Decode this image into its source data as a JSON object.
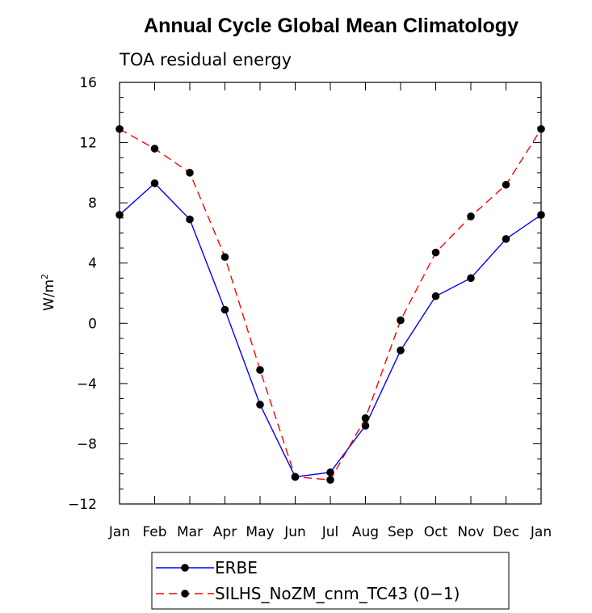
{
  "chart_data": {
    "type": "line",
    "title": "Annual Cycle Global Mean Climatology",
    "subtitle": "TOA residual energy",
    "xlabel": "",
    "ylabel": "W/m",
    "ylabel_sup": "2",
    "categories": [
      "Jan",
      "Feb",
      "Mar",
      "Apr",
      "May",
      "Jun",
      "Jul",
      "Aug",
      "Sep",
      "Oct",
      "Nov",
      "Dec",
      "Jan"
    ],
    "ylim": [
      -12,
      16
    ],
    "yticks": [
      -12,
      -8,
      -4,
      0,
      4,
      8,
      12,
      16
    ],
    "ytick_labels": [
      "−12",
      "−8",
      "−4",
      "0",
      "4",
      "8",
      "12",
      "16"
    ],
    "grid": false,
    "legend_position": "bottom",
    "series": [
      {
        "name": "ERBE",
        "color": "#0000ff",
        "dash": "solid",
        "values": [
          7.2,
          9.3,
          6.9,
          0.9,
          -5.4,
          -10.2,
          -9.9,
          -6.8,
          -1.8,
          1.8,
          3.0,
          5.6,
          7.2
        ]
      },
      {
        "name": "SILHS_NoZM_cnm_TC43 (0−1)",
        "color": "#ff0000",
        "dash": "dashed",
        "values": [
          12.9,
          11.6,
          10.0,
          4.4,
          -3.1,
          -10.2,
          -10.4,
          -6.3,
          0.2,
          4.7,
          7.1,
          9.2,
          12.9
        ]
      }
    ]
  }
}
